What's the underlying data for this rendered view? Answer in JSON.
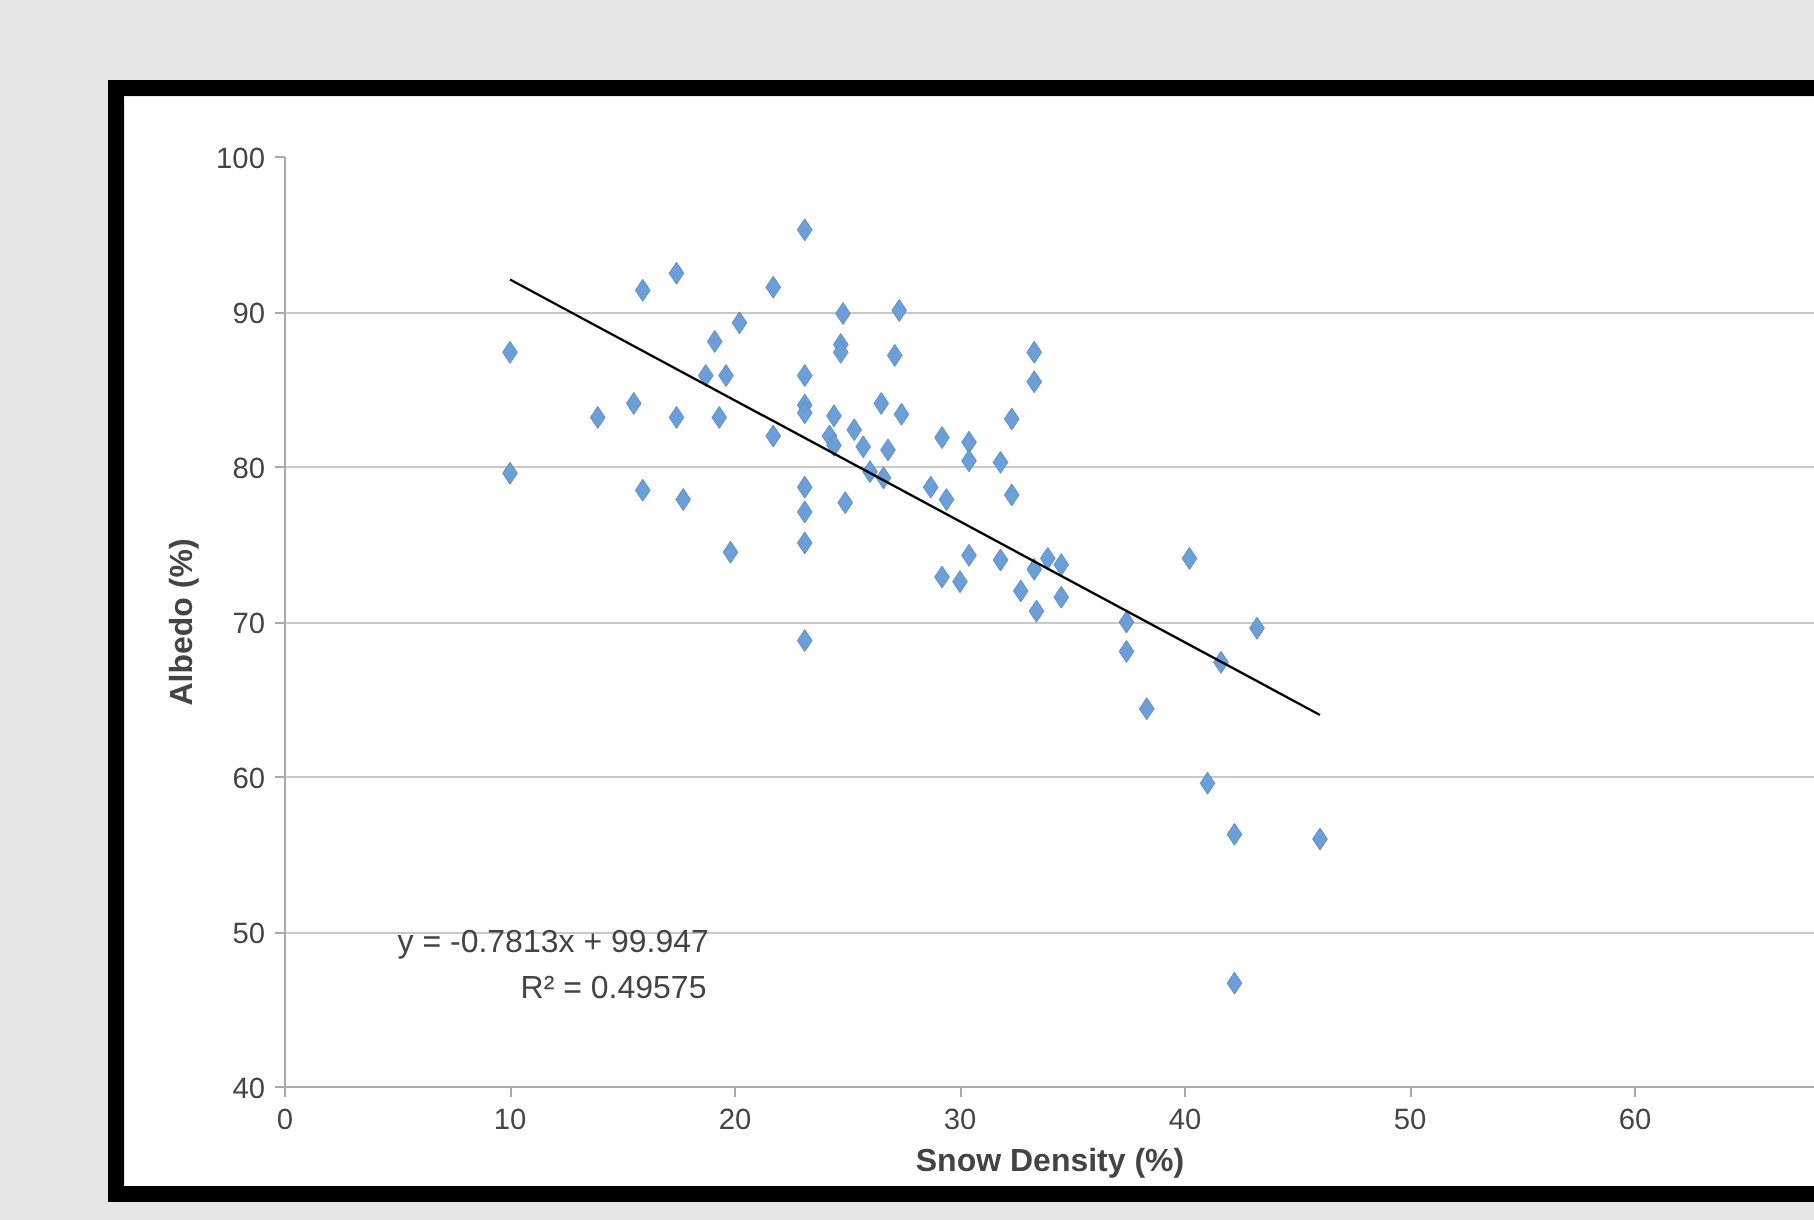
{
  "chart_data": {
    "type": "scatter",
    "xlabel": "Snow Density (%)",
    "ylabel": "Albedo (%)",
    "xlim": [
      0,
      68
    ],
    "xticks": [
      0,
      10,
      20,
      30,
      40,
      50,
      60
    ],
    "ylim": [
      40,
      100
    ],
    "yticks": [
      40,
      50,
      60,
      70,
      80,
      90,
      100
    ],
    "grid": "y",
    "annotations": [
      "y = -0.7813x + 99.947",
      "R² = 0.49575"
    ],
    "series": [
      {
        "marker": "diamond",
        "color": "#6b9fd9",
        "x": [
          10.0,
          10.0,
          23.1,
          17.4,
          15.9,
          21.7,
          24.8,
          27.3,
          20.2,
          19.1,
          24.7,
          24.7,
          27.1,
          18.7,
          19.6,
          23.1,
          13.9,
          15.5,
          17.4,
          19.3,
          21.7,
          23.1,
          23.1,
          24.4,
          25.3,
          26.5,
          27.4,
          29.2,
          24.2,
          24.4,
          25.7,
          26.8,
          26.0,
          26.6,
          28.7,
          15.9,
          17.7,
          23.1,
          23.1,
          24.9,
          19.8,
          23.1,
          29.2,
          23.1,
          33.3,
          33.3,
          30.4,
          30.4,
          31.8,
          32.3,
          32.3,
          29.4,
          30.4,
          31.8,
          30.0,
          32.7,
          33.4,
          33.3,
          33.9,
          34.5,
          34.5,
          40.2,
          37.4,
          37.4,
          43.2,
          41.6,
          38.3,
          41.0,
          42.2,
          46.0,
          42.2
        ],
        "values": [
          87.4,
          79.6,
          95.3,
          92.5,
          91.4,
          91.6,
          89.9,
          90.1,
          89.3,
          88.1,
          87.9,
          87.4,
          87.2,
          85.9,
          85.9,
          85.9,
          83.2,
          84.1,
          83.2,
          83.2,
          82.0,
          84.0,
          83.5,
          83.3,
          82.4,
          84.1,
          83.4,
          81.9,
          82.0,
          81.4,
          81.3,
          81.1,
          79.7,
          79.3,
          78.7,
          78.5,
          77.9,
          78.7,
          77.1,
          77.7,
          74.5,
          75.1,
          72.9,
          68.8,
          87.4,
          85.5,
          81.6,
          80.4,
          80.3,
          83.1,
          78.2,
          77.9,
          74.3,
          74.0,
          72.6,
          72.0,
          70.7,
          73.4,
          74.1,
          73.7,
          71.6,
          74.1,
          70.0,
          68.1,
          69.6,
          67.4,
          64.4,
          59.6,
          56.3,
          56.0,
          46.7
        ]
      },
      {
        "type": "line",
        "color": "#000000",
        "x": [
          10,
          46
        ],
        "values": [
          92.1,
          64.0
        ]
      }
    ]
  }
}
